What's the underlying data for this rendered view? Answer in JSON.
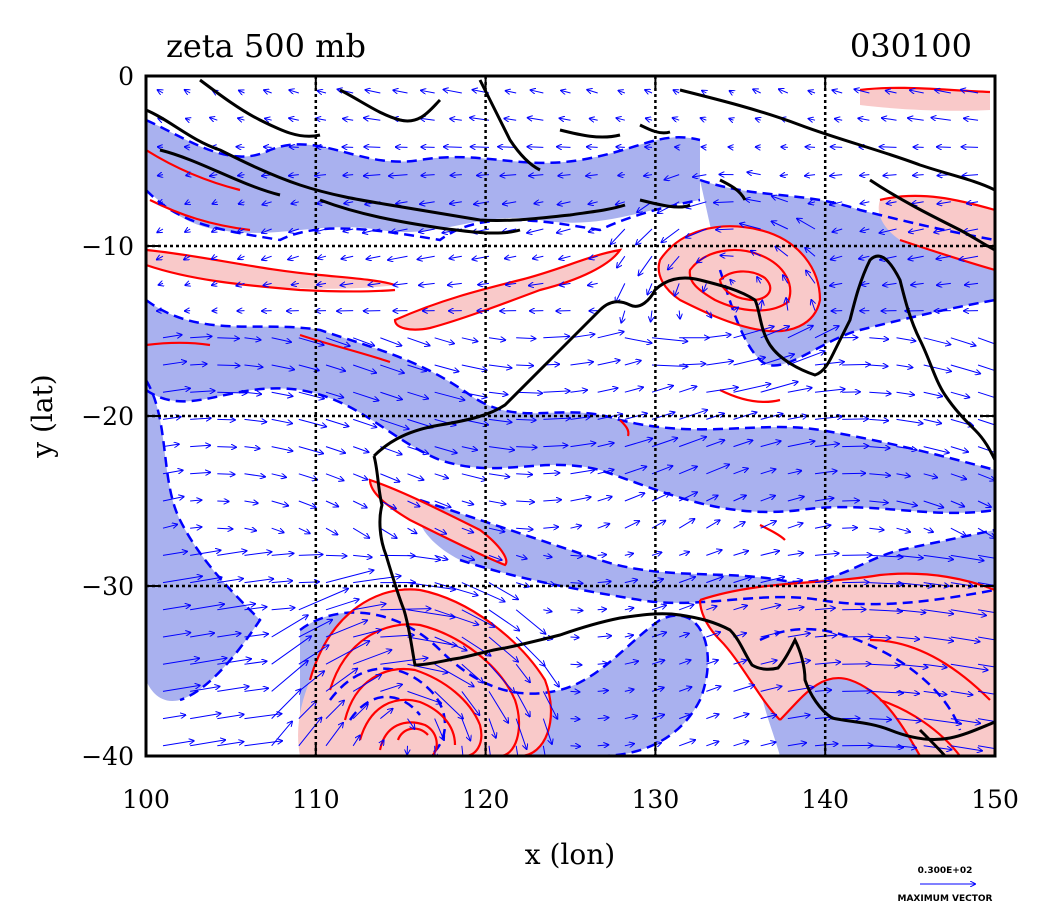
{
  "chart_data": {
    "type": "contour",
    "title": "zeta 500 mb",
    "timestamp": "030100",
    "xlabel": "x (lon)",
    "ylabel": "y (lat)",
    "xlim": [
      100,
      150
    ],
    "ylim": [
      -40,
      0
    ],
    "x_ticks": [
      100,
      110,
      120,
      130,
      140,
      150
    ],
    "y_ticks": [
      0,
      -10,
      -20,
      -30,
      -40
    ],
    "x_tick_labels": [
      "100",
      "110",
      "120",
      "130",
      "140",
      "150"
    ],
    "y_tick_labels": [
      "0",
      "−10",
      "−20",
      "−30",
      "−40"
    ],
    "grid": true,
    "grid_lines_lon": [
      110,
      120,
      130,
      140
    ],
    "grid_lines_lat": [
      -10,
      -20,
      -30
    ],
    "positive_contour_color": "#ff0000",
    "positive_fill_color": "#f9c9c9",
    "negative_contour_color": "#0000ff",
    "negative_fill_color": "#a9b1ef",
    "vector_color": "#0000ff",
    "coastline_color": "#000000",
    "max_vector": {
      "value_label": "0.300E+02",
      "caption": "MAXIMUM VECTOR"
    }
  }
}
